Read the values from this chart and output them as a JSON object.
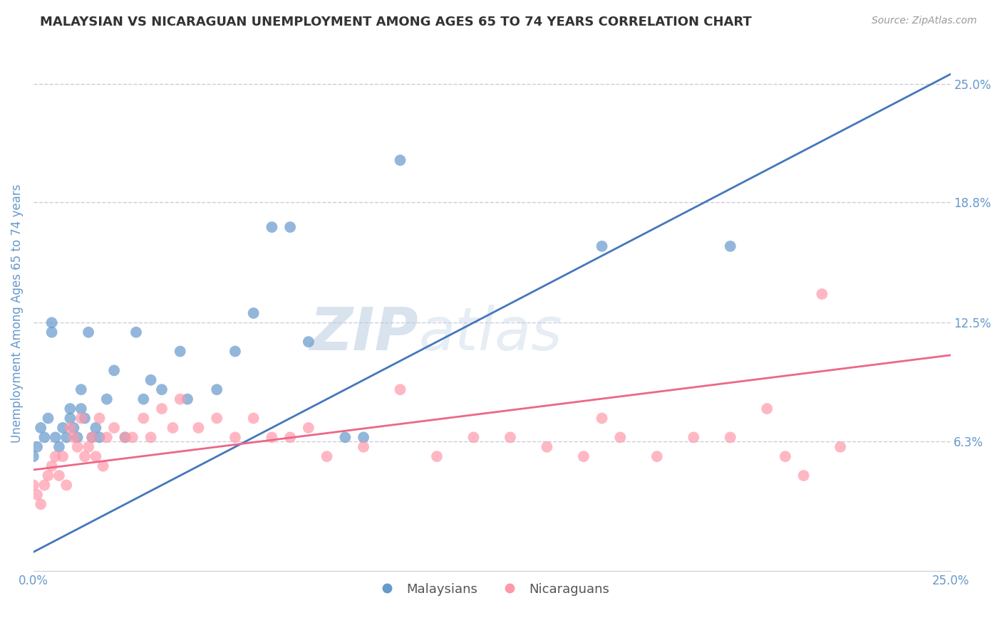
{
  "title": "MALAYSIAN VS NICARAGUAN UNEMPLOYMENT AMONG AGES 65 TO 74 YEARS CORRELATION CHART",
  "source": "Source: ZipAtlas.com",
  "ylabel": "Unemployment Among Ages 65 to 74 years",
  "xlim": [
    0,
    0.25
  ],
  "ylim": [
    -0.005,
    0.265
  ],
  "xtick_labels": [
    "0.0%",
    "25.0%"
  ],
  "ytick_labels": [
    "6.3%",
    "12.5%",
    "18.8%",
    "25.0%"
  ],
  "ytick_vals": [
    0.063,
    0.125,
    0.188,
    0.25
  ],
  "legend_label_blue": "Malaysians",
  "legend_label_pink": "Nicaraguans",
  "watermark_part1": "ZIP",
  "watermark_part2": "atlas",
  "blue_color": "#6699CC",
  "pink_color": "#FF99AA",
  "blue_line_color": "#4477BB",
  "pink_line_color": "#EE6688",
  "title_color": "#333333",
  "axis_label_color": "#6699CC",
  "background_color": "#FFFFFF",
  "grid_color": "#CCCCDD",
  "blue_points_x": [
    0.0,
    0.001,
    0.002,
    0.003,
    0.004,
    0.005,
    0.005,
    0.006,
    0.007,
    0.008,
    0.009,
    0.01,
    0.01,
    0.011,
    0.012,
    0.013,
    0.013,
    0.014,
    0.015,
    0.016,
    0.017,
    0.018,
    0.02,
    0.022,
    0.025,
    0.028,
    0.03,
    0.032,
    0.035,
    0.04,
    0.042,
    0.05,
    0.055,
    0.06,
    0.065,
    0.07,
    0.075,
    0.085,
    0.09,
    0.1,
    0.155,
    0.19
  ],
  "blue_points_y": [
    0.055,
    0.06,
    0.07,
    0.065,
    0.075,
    0.12,
    0.125,
    0.065,
    0.06,
    0.07,
    0.065,
    0.08,
    0.075,
    0.07,
    0.065,
    0.09,
    0.08,
    0.075,
    0.12,
    0.065,
    0.07,
    0.065,
    0.085,
    0.1,
    0.065,
    0.12,
    0.085,
    0.095,
    0.09,
    0.11,
    0.085,
    0.09,
    0.11,
    0.13,
    0.175,
    0.175,
    0.115,
    0.065,
    0.065,
    0.21,
    0.165,
    0.165
  ],
  "pink_points_x": [
    0.0,
    0.001,
    0.002,
    0.003,
    0.004,
    0.005,
    0.006,
    0.007,
    0.008,
    0.009,
    0.01,
    0.011,
    0.012,
    0.013,
    0.014,
    0.015,
    0.016,
    0.017,
    0.018,
    0.019,
    0.02,
    0.022,
    0.025,
    0.027,
    0.03,
    0.032,
    0.035,
    0.038,
    0.04,
    0.045,
    0.05,
    0.055,
    0.06,
    0.065,
    0.07,
    0.075,
    0.08,
    0.09,
    0.1,
    0.11,
    0.12,
    0.13,
    0.14,
    0.15,
    0.155,
    0.16,
    0.17,
    0.18,
    0.19,
    0.2,
    0.205,
    0.21,
    0.215,
    0.22
  ],
  "pink_points_y": [
    0.04,
    0.035,
    0.03,
    0.04,
    0.045,
    0.05,
    0.055,
    0.045,
    0.055,
    0.04,
    0.07,
    0.065,
    0.06,
    0.075,
    0.055,
    0.06,
    0.065,
    0.055,
    0.075,
    0.05,
    0.065,
    0.07,
    0.065,
    0.065,
    0.075,
    0.065,
    0.08,
    0.07,
    0.085,
    0.07,
    0.075,
    0.065,
    0.075,
    0.065,
    0.065,
    0.07,
    0.055,
    0.06,
    0.09,
    0.055,
    0.065,
    0.065,
    0.06,
    0.055,
    0.075,
    0.065,
    0.055,
    0.065,
    0.065,
    0.08,
    0.055,
    0.045,
    0.14,
    0.06
  ],
  "blue_line_x": [
    0.0,
    0.25
  ],
  "blue_line_y": [
    0.005,
    0.255
  ],
  "pink_line_x": [
    0.0,
    0.25
  ],
  "pink_line_y": [
    0.048,
    0.108
  ]
}
